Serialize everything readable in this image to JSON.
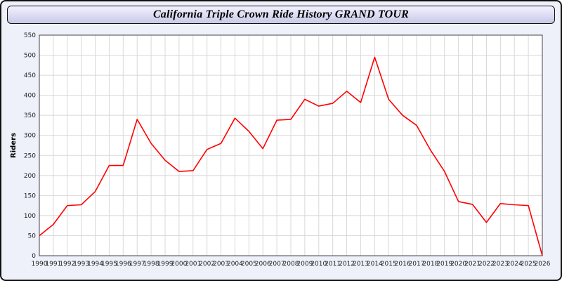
{
  "header": {
    "title": "California Triple Crown Ride History GRAND TOUR"
  },
  "colors": {
    "line": "#ff0000",
    "grid": "#d8d8d8",
    "plot_bg": "#ffffff",
    "axis_text": "#222222",
    "panel_bg": "#eef0fa"
  },
  "chart_data": {
    "type": "line",
    "title": "California Triple Crown Ride History GRAND TOUR",
    "xlabel": "",
    "ylabel": "Riders",
    "ylim": [
      0,
      550
    ],
    "y_tick_step": 50,
    "grid": true,
    "legend": "none",
    "x": [
      1990,
      1991,
      1992,
      1993,
      1994,
      1995,
      1996,
      1997,
      1998,
      1999,
      2000,
      2001,
      2002,
      2003,
      2004,
      2005,
      2006,
      2007,
      2008,
      2009,
      2010,
      2011,
      2012,
      2013,
      2014,
      2015,
      2016,
      2017,
      2018,
      2019,
      2020,
      2021,
      2022,
      2023,
      2024,
      2025,
      2026
    ],
    "series": [
      {
        "name": "Riders",
        "values": [
          50,
          78,
          125,
          127,
          160,
          225,
          225,
          340,
          280,
          238,
          210,
          212,
          265,
          280,
          343,
          310,
          267,
          338,
          340,
          390,
          373,
          380,
          410,
          382,
          495,
          390,
          350,
          325,
          263,
          210,
          135,
          128,
          83,
          130,
          127,
          125,
          0
        ]
      }
    ]
  }
}
